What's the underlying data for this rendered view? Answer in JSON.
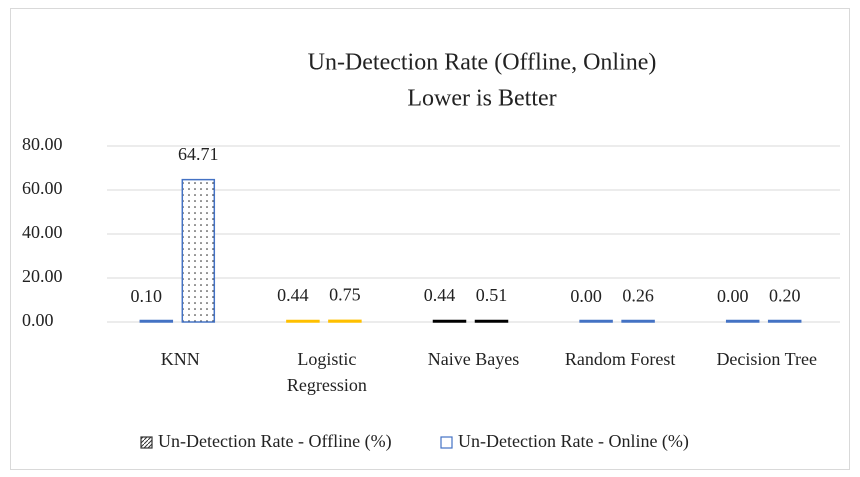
{
  "chart_data": {
    "type": "bar",
    "title": "Un-Detection Rate (Offline, Online)",
    "subtitle": "Lower is Better",
    "categories": [
      "KNN",
      "Logistic Regression",
      "Naive Bayes",
      "Random Forest",
      "Decision Tree"
    ],
    "series": [
      {
        "name": "Un-Detection Rate - Offline (%)",
        "color": "#333333",
        "colors": [
          "#4472c4",
          "#ffc000",
          "#000000",
          "#4472c4",
          "#4472c4"
        ],
        "values": [
          0.1,
          0.44,
          0.44,
          0.0,
          0.0
        ],
        "value_labels": [
          "0.10",
          "0.44",
          "0.44",
          "0.00",
          "0.00"
        ]
      },
      {
        "name": "Un-Detection Rate  - Online (%)",
        "color": "#4472c4",
        "colors": [
          "#4472c4",
          "#ffc000",
          "#000000",
          "#4472c4",
          "#4472c4"
        ],
        "values": [
          64.71,
          0.75,
          0.51,
          0.26,
          0.2
        ],
        "value_labels": [
          "64.71",
          "0.75",
          "0.51",
          "0.26",
          "0.20"
        ]
      }
    ],
    "ylim": [
      0,
      80
    ],
    "yticks": [
      {
        "value": 0,
        "label": "0.00"
      },
      {
        "value": 20,
        "label": "20.00"
      },
      {
        "value": 40,
        "label": "40.00"
      },
      {
        "value": 60,
        "label": "60.00"
      },
      {
        "value": 80,
        "label": "80.00"
      }
    ],
    "grid": true,
    "legend": "bottom"
  }
}
